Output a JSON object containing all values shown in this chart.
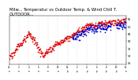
{
  "temp_color": "#dd0000",
  "wind_color": "#0000cc",
  "bg_color": "#ffffff",
  "grid_color": "#bbbbbb",
  "ylim": [
    24,
    57
  ],
  "yticks": [
    25,
    30,
    35,
    40,
    45,
    50,
    55
  ],
  "title_fontsize": 3.8,
  "marker_size": 1.5,
  "title": "Milw... Temperatur vs Outdoor Temp. & Wind Chill T.",
  "subtitle": "OUTDOOR..."
}
